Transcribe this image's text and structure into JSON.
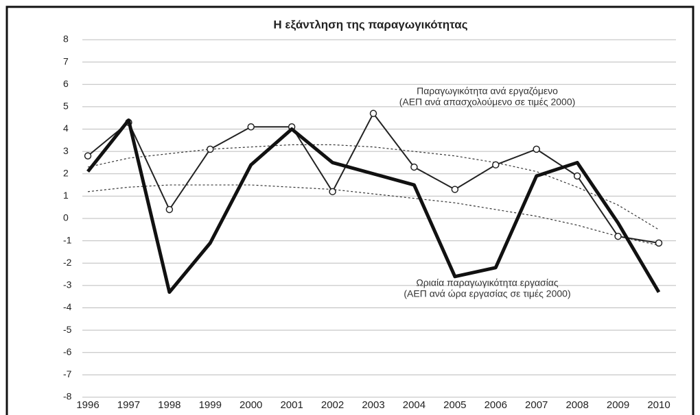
{
  "chart_data": {
    "type": "line",
    "title": "Η εξάντληση της παραγωγικότητας",
    "categories": [
      "1996",
      "1997",
      "1998",
      "1999",
      "2000",
      "2001",
      "2002",
      "2003",
      "2004",
      "2005",
      "2006",
      "2007",
      "2008",
      "2009",
      "2010"
    ],
    "series": [
      {
        "name": "Παραγωγικότητα ανά εργαζόμενο",
        "note": "(ΑΕΠ ανά απασχολούμενο σε τιμές 2000)",
        "color": "#222222",
        "line_width": 2,
        "markers": true,
        "values": [
          2.8,
          4.3,
          0.4,
          3.1,
          4.1,
          4.1,
          1.2,
          4.7,
          2.3,
          1.3,
          2.4,
          3.1,
          1.9,
          -0.8,
          -1.1
        ]
      },
      {
        "name": "Ωριαία παραγωγικότητα εργασίας",
        "note": "(ΑΕΠ ανά ώρα εργασίας σε τιμές 2000)",
        "color": "#111111",
        "line_width": 5,
        "markers": false,
        "values": [
          2.1,
          4.4,
          -3.3,
          -1.1,
          2.4,
          4.0,
          2.5,
          2.0,
          1.5,
          -2.6,
          -2.2,
          1.9,
          2.5,
          -0.2,
          -3.3
        ]
      }
    ],
    "trendlines": [
      {
        "color": "#333333",
        "values": [
          2.3,
          2.7,
          2.9,
          3.1,
          3.2,
          3.3,
          3.3,
          3.2,
          3.0,
          2.8,
          2.5,
          2.1,
          1.4,
          0.6,
          -0.5
        ]
      },
      {
        "color": "#333333",
        "values": [
          1.2,
          1.4,
          1.5,
          1.5,
          1.5,
          1.4,
          1.3,
          1.1,
          0.9,
          0.7,
          0.4,
          0.1,
          -0.3,
          -0.8,
          -1.2
        ]
      }
    ],
    "ylim": [
      -8,
      8
    ],
    "yticks": [
      -8,
      -7,
      -6,
      -5,
      -4,
      -3,
      -2,
      -1,
      0,
      1,
      2,
      3,
      4,
      5,
      6,
      7,
      8
    ],
    "grid": true
  }
}
